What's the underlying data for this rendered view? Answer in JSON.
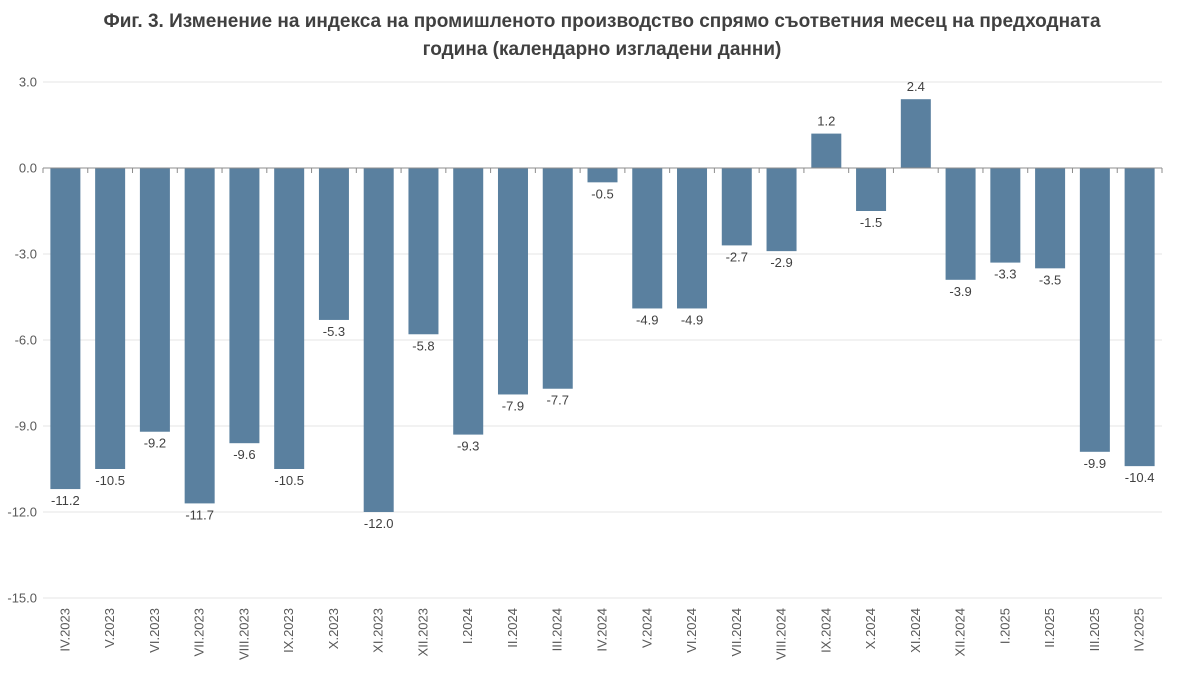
{
  "chart_data": {
    "type": "bar",
    "title": "Фиг. 3. Изменение на индекса на промишленото производство спрямо съответния месец на предходната година (календарно изгладени данни)",
    "title_lines": [
      "Фиг. 3. Изменение на индекса на промишленото производство спрямо съответния месец на предходната",
      "година (календарно изгладени данни)"
    ],
    "categories": [
      "IV.2023",
      "V.2023",
      "VI.2023",
      "VII.2023",
      "VIII.2023",
      "IX.2023",
      "X.2023",
      "XI.2023",
      "XII.2023",
      "I.2024",
      "II.2024",
      "III.2024",
      "IV.2024",
      "V.2024",
      "VI.2024",
      "VII.2024",
      "VIII.2024",
      "IX.2024",
      "X.2024",
      "XI.2024",
      "XII.2024",
      "I.2025",
      "II.2025",
      "III.2025",
      "IV.2025"
    ],
    "values": [
      -11.2,
      -10.5,
      -9.2,
      -11.7,
      -9.6,
      -10.5,
      -5.3,
      -12.0,
      -5.8,
      -9.3,
      -7.9,
      -7.7,
      -0.5,
      -4.9,
      -4.9,
      -2.7,
      -2.9,
      1.2,
      -1.5,
      2.4,
      -3.9,
      -3.3,
      -3.5,
      -9.9,
      -10.4
    ],
    "ylim": [
      -15.0,
      3.0
    ],
    "yticks": [
      3.0,
      0.0,
      -3.0,
      -6.0,
      -9.0,
      -12.0,
      -15.0
    ],
    "grid": true,
    "legend": "none",
    "bar_color": "#5a809f",
    "gridline_color": "#e4e4e4",
    "axis_color": "#8c8c8c"
  }
}
